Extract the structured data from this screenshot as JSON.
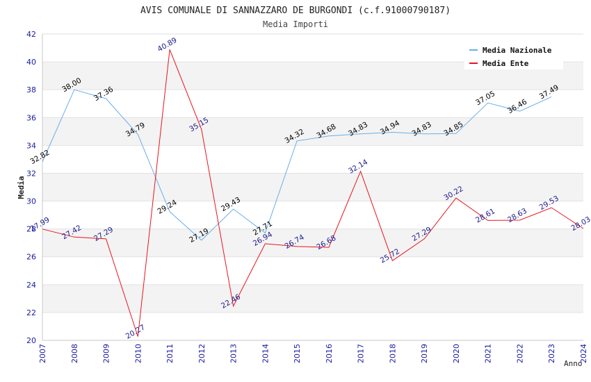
{
  "chart_data": {
    "type": "line",
    "title": "AVIS COMUNALE DI SANNAZZARO DE BURGONDI (c.f.91000790187)",
    "subtitle": "Media Importi",
    "xlabel": "Anno",
    "ylabel": "Media",
    "ylim": [
      20,
      42
    ],
    "y_ticks": [
      "20",
      "22",
      "24",
      "26",
      "28",
      "30",
      "32",
      "34",
      "36",
      "38",
      "40",
      "42"
    ],
    "x": [
      "2007",
      "2008",
      "2009",
      "2010",
      "2011",
      "2012",
      "2013",
      "2014",
      "2015",
      "2016",
      "2017",
      "2018",
      "2019",
      "2020",
      "2021",
      "2022",
      "2023",
      "2024"
    ],
    "grid": "horizontal bands",
    "legend_position": "top-right",
    "series": [
      {
        "name": "Media Nazionale",
        "color": "#6aaee8",
        "label_color": "#000000",
        "values": [
          32.82,
          38.0,
          37.36,
          34.79,
          29.24,
          27.19,
          29.43,
          27.71,
          34.32,
          34.68,
          34.83,
          34.94,
          34.83,
          34.85,
          37.05,
          36.46,
          37.49,
          null
        ],
        "labels": [
          "32.82",
          "38.00",
          "37.36",
          "34.79",
          "29.24",
          "27.19",
          "29.43",
          "27.71",
          "34.32",
          "34.68",
          "34.83",
          "34.94",
          "34.83",
          "34.85",
          "37.05",
          "36.46",
          "37.49",
          ""
        ]
      },
      {
        "name": "Media Ente",
        "color": "#e8141c",
        "label_color": "#1a1a8c",
        "values": [
          27.99,
          27.42,
          27.29,
          20.27,
          40.89,
          35.15,
          22.46,
          26.94,
          26.74,
          26.68,
          32.14,
          25.72,
          27.29,
          30.22,
          28.61,
          28.63,
          29.53,
          28.03
        ],
        "labels": [
          "27.99",
          "27.42",
          "27.29",
          "20.27",
          "40.89",
          "35.15",
          "22.46",
          "26.94",
          "26.74",
          "26.68",
          "32.14",
          "25.72",
          "27.29",
          "30.22",
          "28.61",
          "28.63",
          "29.53",
          "28.03"
        ]
      }
    ]
  }
}
